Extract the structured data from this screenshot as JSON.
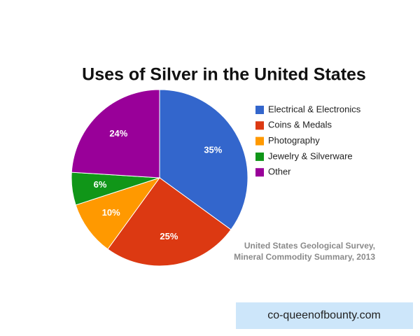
{
  "chart_data": {
    "type": "pie",
    "title": "Uses of Silver in the United States",
    "categories": [
      "Electrical & Electronics",
      "Coins & Medals",
      "Photography",
      "Jewelry & Silverware",
      "Other"
    ],
    "values": [
      35,
      25,
      10,
      6,
      24
    ],
    "value_labels": [
      "35%",
      "25%",
      "10%",
      "6%",
      "24%"
    ],
    "colors": [
      "#3366cc",
      "#dc3912",
      "#ff9900",
      "#109618",
      "#990099"
    ],
    "annotation": [
      "United States Geological Survey,",
      "Mineral Commodity Summary, 2013"
    ],
    "legend": "right"
  },
  "watermark": "co-queenofbounty.com"
}
